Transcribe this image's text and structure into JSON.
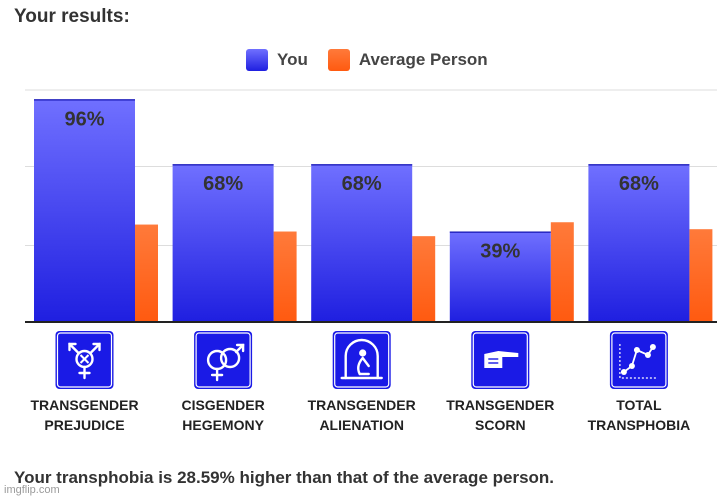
{
  "heading": "Your results:",
  "footer": "Your transphobia is 28.59% higher than that of the average person.",
  "watermark": "imgflip.com",
  "colors": {
    "you_top": "#7070ff",
    "you_bottom": "#1f1fe0",
    "average_top": "#ff7a3a",
    "average_bottom": "#ff5a10",
    "icon_bg": "#1a1ae6",
    "grid": "#dddddd",
    "axis": "#222222",
    "text": "#333333"
  },
  "chart_data": {
    "type": "bar",
    "title": "",
    "xlabel": "",
    "ylabel": "",
    "ylim": [
      0,
      100
    ],
    "grid": true,
    "legend": "top-center",
    "categories": [
      "TRANSGENDER PREJUDICE",
      "CISGENDER HEGEMONY",
      "TRANSGENDER ALIENATION",
      "TRANSGENDER SCORN",
      "TOTAL TRANSPHOBIA"
    ],
    "category_lines": [
      [
        "TRANSGENDER",
        "PREJUDICE"
      ],
      [
        "CISGENDER",
        "HEGEMONY"
      ],
      [
        "TRANSGENDER",
        "ALIENATION"
      ],
      [
        "TRANSGENDER",
        "SCORN"
      ],
      [
        "TOTAL",
        "TRANSPHOBIA"
      ]
    ],
    "icons": [
      "transgender-symbol-icon",
      "linked-gender-symbols-icon",
      "isolated-figure-icon",
      "pointing-hand-icon",
      "line-graph-icon"
    ],
    "series": [
      {
        "name": "You",
        "values": [
          96,
          68,
          68,
          39,
          68
        ],
        "labels": [
          "96%",
          "68%",
          "68%",
          "39%",
          "68%"
        ]
      },
      {
        "name": "Average Person",
        "values": [
          42,
          39,
          37,
          43,
          40
        ]
      }
    ]
  }
}
